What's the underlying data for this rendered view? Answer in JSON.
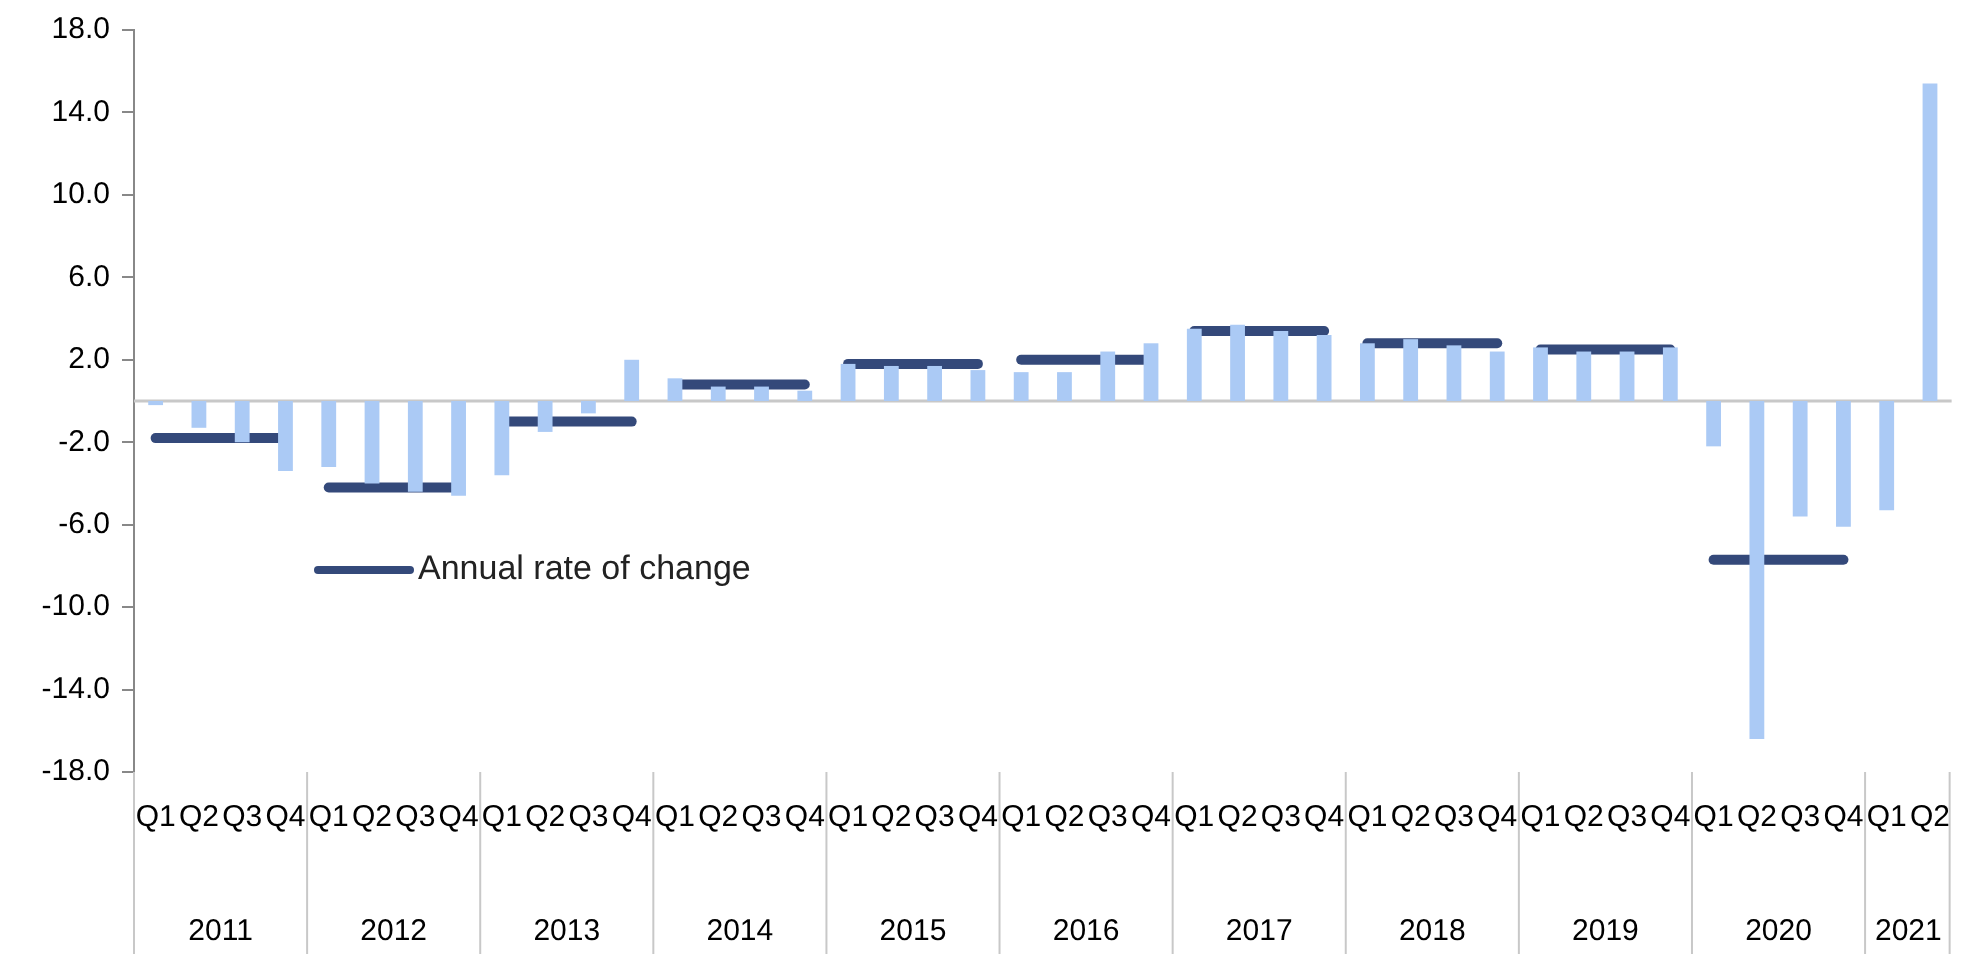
{
  "chart_data": {
    "type": "bar",
    "categories": [
      "Q1",
      "Q2",
      "Q3",
      "Q4",
      "Q1",
      "Q2",
      "Q3",
      "Q4",
      "Q1",
      "Q2",
      "Q3",
      "Q4",
      "Q1",
      "Q2",
      "Q3",
      "Q4",
      "Q1",
      "Q2",
      "Q3",
      "Q4",
      "Q1",
      "Q2",
      "Q3",
      "Q4",
      "Q1",
      "Q2",
      "Q3",
      "Q4",
      "Q1",
      "Q2",
      "Q3",
      "Q4",
      "Q1",
      "Q2",
      "Q3",
      "Q4",
      "Q1",
      "Q2",
      "Q3",
      "Q4",
      "Q1",
      "Q2"
    ],
    "annotations": [
      "2011",
      "2012",
      "2013",
      "2014",
      "2015",
      "2016",
      "2017",
      "2018",
      "2019",
      "2020",
      "2021"
    ],
    "series": [
      {
        "color": "#abcaf5",
        "values": [
          -0.2,
          -1.3,
          -2.0,
          -3.4,
          -3.2,
          -4.0,
          -4.4,
          -4.6,
          -3.6,
          -1.5,
          -0.6,
          2.0,
          1.1,
          0.7,
          0.7,
          0.5,
          1.8,
          1.7,
          1.7,
          1.5,
          1.4,
          1.4,
          2.4,
          2.8,
          3.5,
          3.7,
          3.4,
          3.2,
          2.8,
          3.0,
          2.7,
          2.4,
          2.6,
          2.4,
          2.4,
          2.6,
          -2.2,
          -16.4,
          -5.6,
          -6.1,
          -5.3,
          15.4
        ]
      },
      {
        "type": "line",
        "name": "Annual rate of change",
        "color": "#34497a",
        "values": [
          -1.8,
          -1.8,
          -1.8,
          -1.8,
          -4.2,
          -4.2,
          -4.2,
          -4.2,
          -1.0,
          -1.0,
          -1.0,
          -1.0,
          0.8,
          0.8,
          0.8,
          0.8,
          1.8,
          1.8,
          1.8,
          1.8,
          2.0,
          2.0,
          2.0,
          2.0,
          3.4,
          3.4,
          3.4,
          3.4,
          2.8,
          2.8,
          2.8,
          2.8,
          2.5,
          2.5,
          2.5,
          2.5,
          -7.7,
          -7.7,
          -7.7,
          -7.7,
          null,
          null
        ]
      }
    ],
    "ylim": [
      -18,
      18
    ],
    "yticks": [
      {
        "value": 18,
        "label": "18.0"
      },
      {
        "value": 14,
        "label": "14.0"
      },
      {
        "value": 10,
        "label": "10.0"
      },
      {
        "value": 6,
        "label": "6.0"
      },
      {
        "value": 2,
        "label": "2.0"
      },
      {
        "value": -2,
        "label": "-2.0"
      },
      {
        "value": -6,
        "label": "-6.0"
      },
      {
        "value": -10,
        "label": "-10.0"
      },
      {
        "value": -14,
        "label": "-14.0"
      },
      {
        "value": -18,
        "label": "-18.0"
      }
    ],
    "legend": "left",
    "marker": "none",
    "grid": false
  }
}
